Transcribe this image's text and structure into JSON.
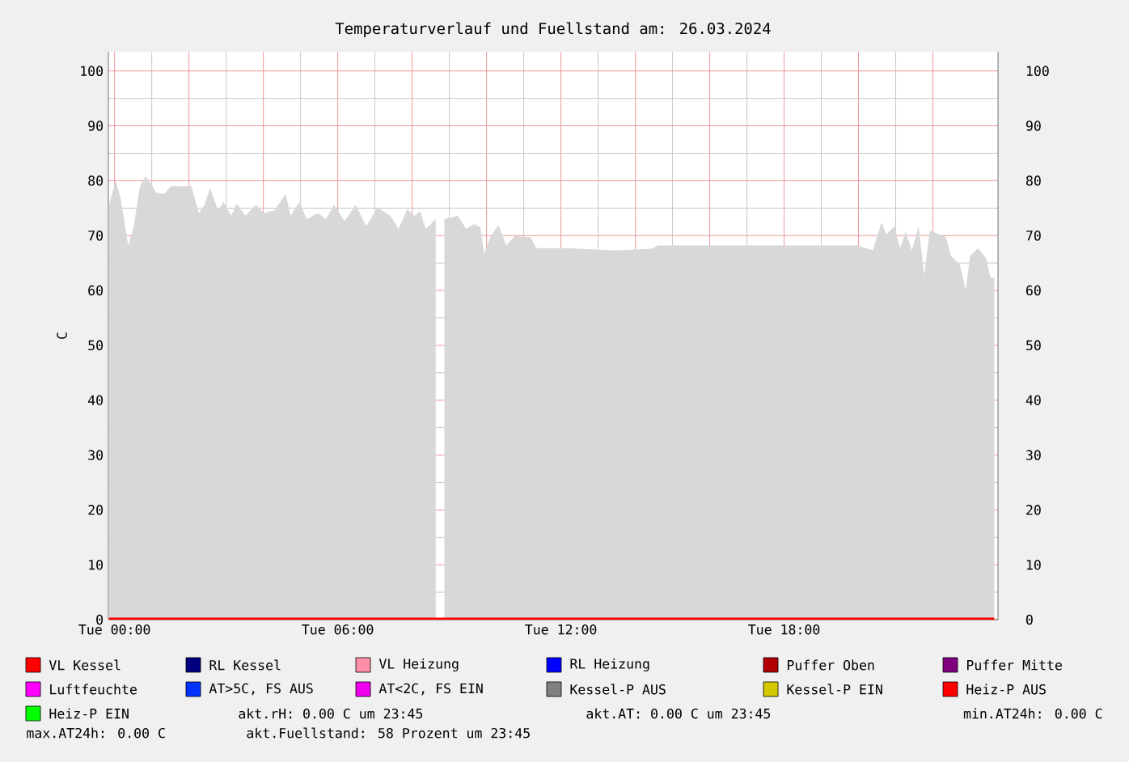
{
  "chart_data": {
    "type": "area",
    "title": "Temperaturverlauf und Fuellstand am: 26.03.2024",
    "ylabel": "C",
    "xlim": [
      "2024-03-25T23:50",
      "2024-03-26T23:45"
    ],
    "ylim": [
      0,
      103.5
    ],
    "y2lim": [
      0,
      103.5
    ],
    "xticks": [
      {
        "value": "2024-03-26T00:00",
        "label": "Tue 00:00"
      },
      {
        "value": "2024-03-26T02:00",
        "label": null
      },
      {
        "value": "2024-03-26T04:00",
        "label": null
      },
      {
        "value": "2024-03-26T06:00",
        "label": "Tue 06:00"
      },
      {
        "value": "2024-03-26T08:00",
        "label": null
      },
      {
        "value": "2024-03-26T10:00",
        "label": null
      },
      {
        "value": "2024-03-26T12:00",
        "label": "Tue 12:00"
      },
      {
        "value": "2024-03-26T14:00",
        "label": null
      },
      {
        "value": "2024-03-26T16:00",
        "label": null
      },
      {
        "value": "2024-03-26T18:00",
        "label": "Tue 18:00"
      },
      {
        "value": "2024-03-26T20:00",
        "label": null
      },
      {
        "value": "2024-03-26T22:00",
        "label": null
      }
    ],
    "yticks": [
      0,
      10,
      20,
      30,
      40,
      50,
      60,
      70,
      80,
      90,
      100
    ],
    "y2ticks": [
      0,
      10,
      20,
      30,
      40,
      50,
      60,
      70,
      80,
      90,
      100
    ],
    "grid": true,
    "legend": "bottom",
    "series": [
      {
        "color": "#d8d8d8",
        "x": [
          "2024-03-25T23:51",
          "2024-03-26T00:02",
          "2024-03-26T00:10",
          "2024-03-26T00:22",
          "2024-03-26T00:31",
          "2024-03-26T00:41",
          "2024-03-26T00:50",
          "2024-03-26T00:58",
          "2024-03-26T01:07",
          "2024-03-26T01:20",
          "2024-03-26T01:31",
          "2024-03-26T01:50",
          "2024-03-26T02:04",
          "2024-03-26T02:16",
          "2024-03-26T02:25",
          "2024-03-26T02:34",
          "2024-03-26T02:47",
          "2024-03-26T02:56",
          "2024-03-26T03:08",
          "2024-03-26T03:17",
          "2024-03-26T03:31",
          "2024-03-26T03:48",
          "2024-03-26T04:01",
          "2024-03-26T04:18",
          "2024-03-26T04:36",
          "2024-03-26T04:44",
          "2024-03-26T04:58",
          "2024-03-26T05:10",
          "2024-03-26T05:28",
          "2024-03-26T05:41",
          "2024-03-26T05:54",
          "2024-03-26T06:11",
          "2024-03-26T06:29",
          "2024-03-26T06:46",
          "2024-03-26T07:04",
          "2024-03-26T07:25",
          "2024-03-26T07:38",
          "2024-03-26T07:52",
          "2024-03-26T08:04",
          "2024-03-26T08:13",
          "2024-03-26T08:22",
          "2024-03-26T08:38",
          "2024-03-26T08:42",
          "2024-03-26T08:52",
          "2024-03-26T09:14",
          "2024-03-26T09:27",
          "2024-03-26T09:40",
          "2024-03-26T09:50",
          "2024-03-26T09:56",
          "2024-03-26T10:06",
          "2024-03-26T10:19",
          "2024-03-26T10:32",
          "2024-03-26T10:45",
          "2024-03-26T11:11",
          "2024-03-26T11:20",
          "2024-03-26T12:08",
          "2024-03-26T13:26",
          "2024-03-26T14:27",
          "2024-03-26T14:36",
          "2024-03-26T17:21",
          "2024-03-26T19:58",
          "2024-03-26T20:23",
          "2024-03-26T20:37",
          "2024-03-26T20:45",
          "2024-03-26T20:58",
          "2024-03-26T21:07",
          "2024-03-26T21:16",
          "2024-03-26T21:26",
          "2024-03-26T21:37",
          "2024-03-26T21:46",
          "2024-03-26T21:55",
          "2024-03-26T22:21",
          "2024-03-26T22:29",
          "2024-03-26T22:43",
          "2024-03-26T22:53",
          "2024-03-26T23:00",
          "2024-03-26T23:13",
          "2024-03-26T23:26",
          "2024-03-26T23:33",
          "2024-03-26T23:39"
        ],
        "values": [
          75.6,
          80,
          76.7,
          68.2,
          71.7,
          79,
          80.8,
          79.6,
          77.8,
          77.6,
          79,
          79,
          79,
          74.1,
          75.6,
          78.6,
          74.6,
          76.1,
          73.6,
          75.8,
          73.6,
          75.6,
          74.1,
          74.6,
          77.6,
          73.6,
          76.1,
          73,
          74.1,
          73,
          75.6,
          72.6,
          75.6,
          71.7,
          75.1,
          73.6,
          71.2,
          74.8,
          73.6,
          74.4,
          71.2,
          73,
          null,
          73,
          73.6,
          71.2,
          72.1,
          71.5,
          66.7,
          69.7,
          71.9,
          68.2,
          69.9,
          69.7,
          67.7,
          67.7,
          67.3,
          67.6,
          68.2,
          68.2,
          68.2,
          67.3,
          72.4,
          70.2,
          71.7,
          67.7,
          70.7,
          67.3,
          71.7,
          62.8,
          70.9,
          69.7,
          66.3,
          64.8,
          60.1,
          66.3,
          67.7,
          65.8,
          62.3,
          62.3
        ]
      },
      {
        "type": "line",
        "name": "VL Kessel",
        "color": "#ff0000",
        "x": [
          "2024-03-25T23:51",
          "2024-03-26T23:39"
        ],
        "values": [
          0,
          0
        ]
      },
      {
        "type": "line",
        "name": "RL Kessel",
        "color": "#000080",
        "values": [
          null
        ]
      },
      {
        "type": "line",
        "name": "VL Heizung",
        "color": "#ff8fa8",
        "values": [
          null
        ]
      },
      {
        "type": "line",
        "name": "RL Heizung",
        "color": "#0000ff",
        "values": [
          null
        ]
      },
      {
        "type": "line",
        "name": "Puffer Oben",
        "color": "#b00000",
        "values": [
          null
        ]
      },
      {
        "type": "line",
        "name": "Puffer Mitte",
        "color": "#800080",
        "values": [
          null
        ]
      },
      {
        "type": "line",
        "name": "Luftfeuchte",
        "color": "#ff00ff",
        "values": [
          null
        ]
      },
      {
        "type": "line",
        "name": "AT>5C, FS AUS",
        "color": "#0033ff",
        "values": [
          null
        ]
      },
      {
        "type": "line",
        "name": "AT<2C, FS EIN",
        "color": "#ee00ee",
        "values": [
          null
        ]
      },
      {
        "type": "line",
        "name": "Kessel-P AUS",
        "color": "#808080",
        "values": [
          null
        ]
      },
      {
        "type": "line",
        "name": "Kessel-P EIN",
        "color": "#d4c800",
        "values": [
          null
        ]
      },
      {
        "type": "line",
        "name": "Heiz-P AUS",
        "color": "#ff0000",
        "values": [
          null
        ]
      },
      {
        "type": "line",
        "name": "Heiz-P EIN",
        "color": "#00ff00",
        "values": [
          null
        ]
      }
    ],
    "annotations": [
      "akt.rH: 0.00 C um 23:45",
      "akt.AT: 0.00 C um 23:45",
      "min.AT24h: 0.00 C",
      "max.AT24h: 0.00 C",
      "akt.Fuellstand:   58 Prozent um 23:45"
    ]
  }
}
